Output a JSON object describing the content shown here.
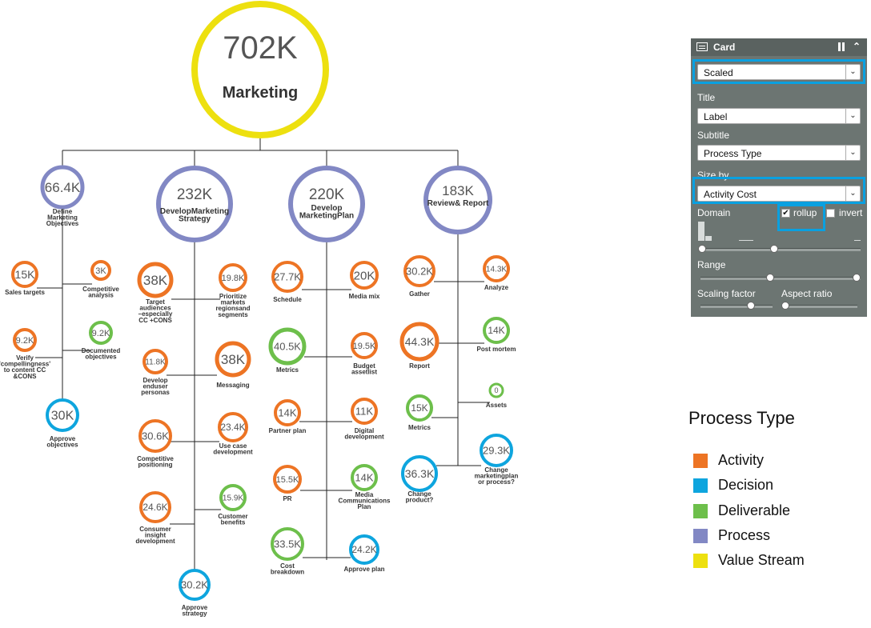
{
  "colors": {
    "Activity": "#ed7424",
    "Decision": "#0ea5de",
    "Deliverable": "#6dbf4b",
    "Process": "#8288c4",
    "Value Stream": "#ede00f"
  },
  "diagram": {
    "nodes": [
      {
        "id": "root",
        "value": "702K",
        "label": "Marketing",
        "type": "Value Stream"
      },
      {
        "id": "p1",
        "value": "66.4K",
        "label": "Define Marketing Objectives",
        "type": "Process"
      },
      {
        "id": "p2",
        "value": "232K",
        "label": "DevelopMarketing Strategy",
        "type": "Process"
      },
      {
        "id": "p3",
        "value": "220K",
        "label": "Develop MarketingPlan",
        "type": "Process"
      },
      {
        "id": "p4",
        "value": "183K",
        "label": "Review& Report",
        "type": "Process"
      },
      {
        "id": "n1",
        "value": "15K",
        "label": "Sales targets",
        "type": "Activity"
      },
      {
        "id": "n2",
        "value": "3K",
        "label": "Competitive analysis",
        "type": "Activity"
      },
      {
        "id": "n3",
        "value": "9.2K",
        "label": "Verify 'compellingness' to content CC &CONS",
        "type": "Activity"
      },
      {
        "id": "n4",
        "value": "9.2K",
        "label": "Documented objectives",
        "type": "Deliverable"
      },
      {
        "id": "n5",
        "value": "30K",
        "label": "Approve objectives",
        "type": "Decision"
      },
      {
        "id": "n6",
        "value": "38K",
        "label": "Target audiences –especially CC +CONS",
        "type": "Activity"
      },
      {
        "id": "n7",
        "value": "19.8K",
        "label": "Prioritize markets regionsand segments",
        "type": "Activity"
      },
      {
        "id": "n8",
        "value": "11.8K",
        "label": "Develop enduser personas",
        "type": "Activity"
      },
      {
        "id": "n9",
        "value": "38K",
        "label": "Messaging",
        "type": "Activity"
      },
      {
        "id": "n10",
        "value": "30.6K",
        "label": "Competitive positioning",
        "type": "Activity"
      },
      {
        "id": "n11",
        "value": "23.4K",
        "label": "Use case development",
        "type": "Activity"
      },
      {
        "id": "n12",
        "value": "24.6K",
        "label": "Consumer insight development",
        "type": "Activity"
      },
      {
        "id": "n13",
        "value": "15.9K",
        "label": "Customer benefits",
        "type": "Deliverable"
      },
      {
        "id": "n14",
        "value": "30.2K",
        "label": "Approve strategy",
        "type": "Decision"
      },
      {
        "id": "n15",
        "value": "27.7K",
        "label": "Schedule",
        "type": "Activity"
      },
      {
        "id": "n16",
        "value": "20K",
        "label": "Media mix",
        "type": "Activity"
      },
      {
        "id": "n17",
        "value": "40.5K",
        "label": "Metrics",
        "type": "Deliverable"
      },
      {
        "id": "n18",
        "value": "19.5K",
        "label": "Budget assetlist",
        "type": "Activity"
      },
      {
        "id": "n19",
        "value": "14K",
        "label": "Partner plan",
        "type": "Activity"
      },
      {
        "id": "n20",
        "value": "11K",
        "label": "Digital development",
        "type": "Activity"
      },
      {
        "id": "n21",
        "value": "15.5K",
        "label": "PR",
        "type": "Activity"
      },
      {
        "id": "n22",
        "value": "14K",
        "label": "Media Communications Plan",
        "type": "Deliverable"
      },
      {
        "id": "n23",
        "value": "33.5K",
        "label": "Cost breakdown",
        "type": "Deliverable"
      },
      {
        "id": "n24",
        "value": "24.2K",
        "label": "Approve plan",
        "type": "Decision"
      },
      {
        "id": "n25",
        "value": "30.2K",
        "label": "Gather",
        "type": "Activity"
      },
      {
        "id": "n26",
        "value": "14.3K",
        "label": "Analyze",
        "type": "Activity"
      },
      {
        "id": "n27",
        "value": "44.3K",
        "label": "Report",
        "type": "Activity"
      },
      {
        "id": "n28",
        "value": "14K",
        "label": "Post mortem",
        "type": "Deliverable"
      },
      {
        "id": "n29",
        "value": "0",
        "label": "Assets",
        "type": "Deliverable"
      },
      {
        "id": "n30",
        "value": "15K",
        "label": "Metrics",
        "type": "Deliverable"
      },
      {
        "id": "n31",
        "value": "29.3K",
        "label": "Change marketingplan or process?",
        "type": "Decision"
      },
      {
        "id": "n32",
        "value": "36.3K",
        "label": "Change product?",
        "type": "Decision"
      }
    ]
  },
  "card": {
    "title": "Card",
    "mode": "Scaled",
    "title_label": "Title",
    "title_value": "Label",
    "subtitle_label": "Subtitle",
    "subtitle_value": "Process Type",
    "sizeby_label": "Size by",
    "sizeby_value": "Activity Cost",
    "domain_label": "Domain",
    "rollup_label": "rollup",
    "rollup_checked": true,
    "invert_label": "invert",
    "invert_checked": false,
    "range_label": "Range",
    "scaling_label": "Scaling factor",
    "aspect_label": "Aspect ratio"
  },
  "legend": {
    "title": "Process Type",
    "items": [
      {
        "label": "Activity",
        "color": "#ed7424"
      },
      {
        "label": "Decision",
        "color": "#0ea5de"
      },
      {
        "label": "Deliverable",
        "color": "#6dbf4b"
      },
      {
        "label": "Process",
        "color": "#8288c4"
      },
      {
        "label": "Value Stream",
        "color": "#ede00f"
      }
    ]
  }
}
